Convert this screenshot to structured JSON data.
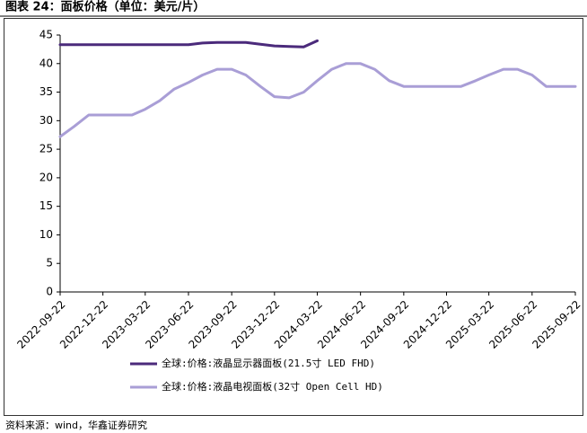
{
  "chart_data": {
    "type": "line",
    "title": "图表 24：面板价格（单位：美元/片）",
    "source": "资料来源：wind，华鑫证券研究",
    "x": [
      "2022-09-22",
      "2022-10-22",
      "2022-11-22",
      "2022-12-22",
      "2023-01-22",
      "2023-02-22",
      "2023-03-22",
      "2023-04-22",
      "2023-05-22",
      "2023-06-22",
      "2023-07-22",
      "2023-08-22",
      "2023-09-22",
      "2023-10-22",
      "2023-11-22",
      "2023-12-22",
      "2024-01-22",
      "2024-02-22",
      "2024-03-22",
      "2024-04-22",
      "2024-05-22",
      "2024-06-22",
      "2024-07-22",
      "2024-08-22",
      "2024-09-22",
      "2024-10-22",
      "2024-11-22",
      "2024-12-22",
      "2025-01-22",
      "2025-02-22",
      "2025-03-22",
      "2025-04-22",
      "2025-05-22",
      "2025-06-22",
      "2025-07-22",
      "2025-08-22",
      "2025-09-22"
    ],
    "series": [
      {
        "name": "全球:价格:液晶显示器面板(21.5寸 LED FHD)",
        "color": "#4b2a7b",
        "values": [
          43.3,
          43.3,
          43.3,
          43.3,
          43.3,
          43.3,
          43.3,
          43.3,
          43.3,
          43.3,
          43.6,
          43.7,
          43.7,
          43.7,
          43.4,
          43.1,
          43.0,
          42.9,
          44.0,
          null,
          null,
          null,
          null,
          null,
          null,
          null,
          null,
          null,
          null,
          null,
          null,
          null,
          null,
          null,
          null,
          null,
          null
        ]
      },
      {
        "name": "全球:价格:液晶电视面板(32寸 Open Cell HD)",
        "color": "#a99ed6",
        "values": [
          27.2,
          29,
          31,
          31,
          31,
          31,
          32,
          33.5,
          35.5,
          36.7,
          38,
          39,
          39,
          38,
          36,
          34.2,
          34,
          35,
          37,
          39,
          40,
          40,
          39,
          37,
          36,
          36,
          36,
          36,
          36,
          37,
          38,
          39,
          39,
          38,
          36,
          36,
          36
        ]
      }
    ],
    "xlim": [
      "2022-09-22",
      "2025-09-22"
    ],
    "xticks": [
      "2022-09-22",
      "2022-12-22",
      "2023-03-22",
      "2023-06-22",
      "2023-09-22",
      "2023-12-22",
      "2024-03-22",
      "2024-06-22",
      "2024-09-22",
      "2024-12-22",
      "2025-03-22",
      "2025-06-22",
      "2025-09-22"
    ],
    "ylim": [
      0,
      45
    ],
    "yticks": [
      0,
      5,
      10,
      15,
      20,
      25,
      30,
      35,
      40,
      45
    ],
    "grid": false
  }
}
